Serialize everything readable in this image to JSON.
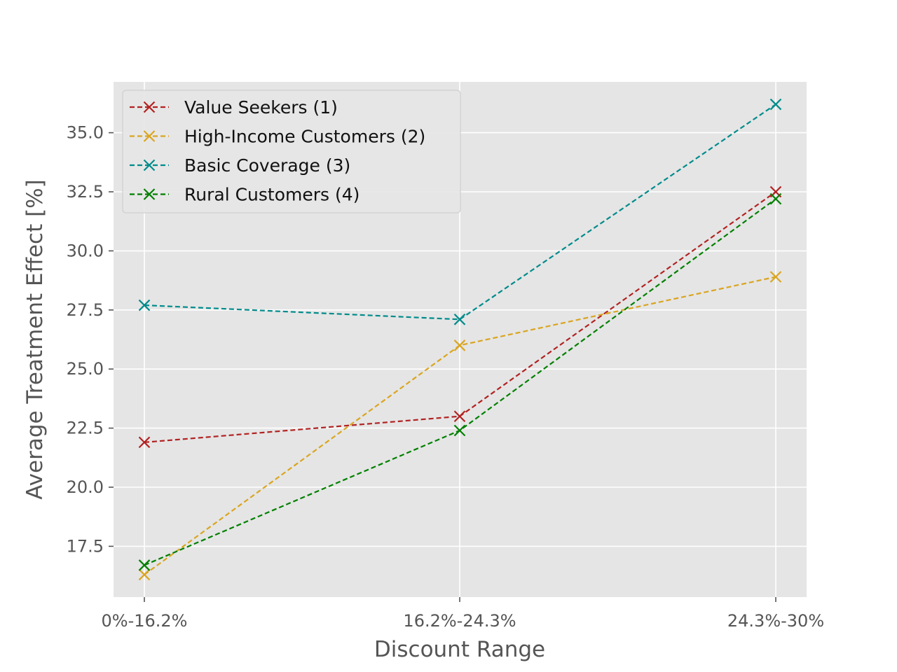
{
  "chart_data": {
    "type": "line",
    "title": "",
    "xlabel": "Discount Range",
    "ylabel": "Average Treatment Effect [%]",
    "categories": [
      "0%-16.2%",
      "16.2%-24.3%",
      "24.3%-30%"
    ],
    "ylim": [
      15.35,
      37.15
    ],
    "yticks": [
      "17.5",
      "20.0",
      "22.5",
      "25.0",
      "27.5",
      "30.0",
      "32.5",
      "35.0"
    ],
    "grid": true,
    "legend_position": "top-left",
    "line_style": "dashed",
    "marker": "x",
    "series": [
      {
        "name": "Value Seekers (1)",
        "color": "#b22222",
        "values": [
          21.9,
          23.0,
          32.5
        ]
      },
      {
        "name": "High-Income Customers (2)",
        "color": "#daa520",
        "values": [
          16.3,
          26.0,
          28.9
        ]
      },
      {
        "name": "Basic Coverage (3)",
        "color": "#008b8b",
        "values": [
          27.7,
          27.1,
          36.2
        ]
      },
      {
        "name": "Rural Customers (4)",
        "color": "#008000",
        "values": [
          16.7,
          22.4,
          32.2
        ]
      }
    ]
  }
}
